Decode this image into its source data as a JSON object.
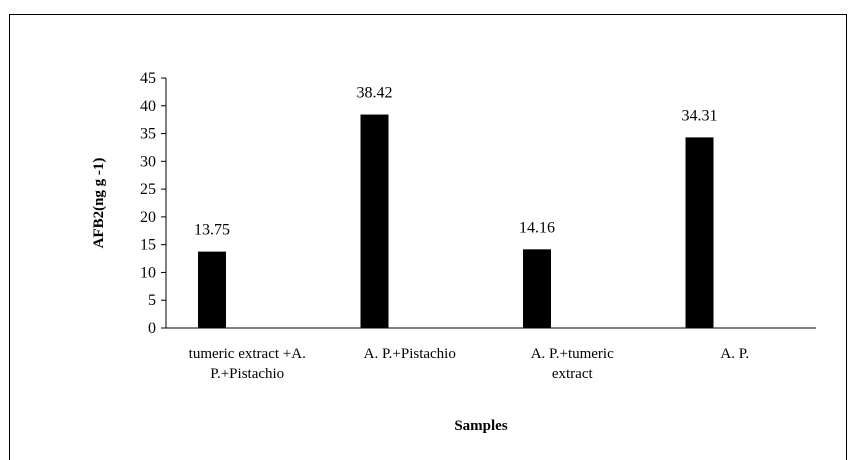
{
  "chart_data": {
    "type": "bar",
    "categories": [
      [
        "tumeric extract +A.",
        "P.+Pistachio"
      ],
      [
        "A. P.+Pistachio"
      ],
      [
        "A. P.+tumeric",
        "extract"
      ],
      [
        "A. P."
      ]
    ],
    "values": [
      13.75,
      38.42,
      14.16,
      34.31
    ],
    "data_labels": [
      "13.75",
      "38.42",
      "14.16",
      "34.31"
    ],
    "xlabel": "Samples",
    "ylabel": "AFB2(ng g -1)",
    "ylim": [
      0,
      45
    ],
    "yticks": [
      "0",
      "5",
      "10",
      "15",
      "20",
      "25",
      "30",
      "35",
      "40",
      "45"
    ],
    "grid": false,
    "bar_color": "#000000"
  }
}
